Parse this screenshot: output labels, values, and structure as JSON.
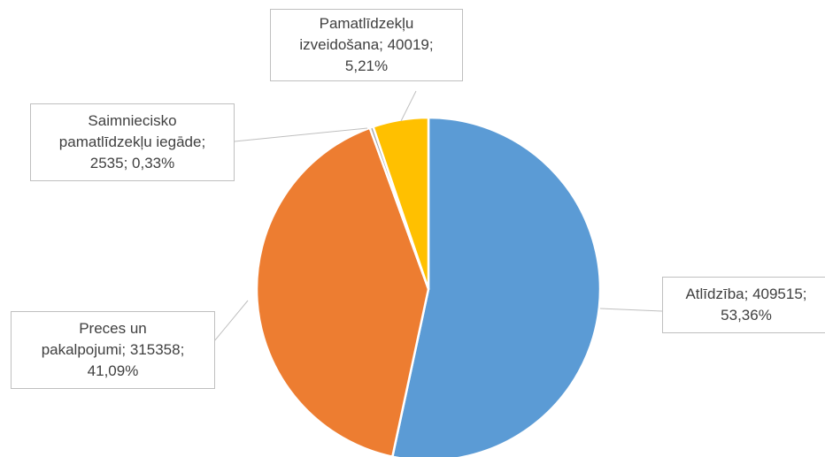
{
  "chart_data": {
    "type": "pie",
    "categories": [
      "Atlīdzība",
      "Preces un pakalpojumi",
      "Saimniecisko pamatlīdzekļu iegāde",
      "Pamatlīdzekļu izveidošana"
    ],
    "values": [
      409515,
      315358,
      2535,
      40019
    ],
    "value_labels": [
      "Atlīdzība; 409515;\n53,36%",
      "Preces un\npakalpojumi; 315358;\n41,09%",
      "Saimniecisko\npamatlīdzekļu iegāde;\n2535; 0,33%",
      "Pamatlīdzekļu\nizveidošana; 40019;\n5,21%"
    ],
    "colors": [
      "#5b9bd5",
      "#ed7d31",
      "#a5a5a5",
      "#ffc000"
    ]
  }
}
